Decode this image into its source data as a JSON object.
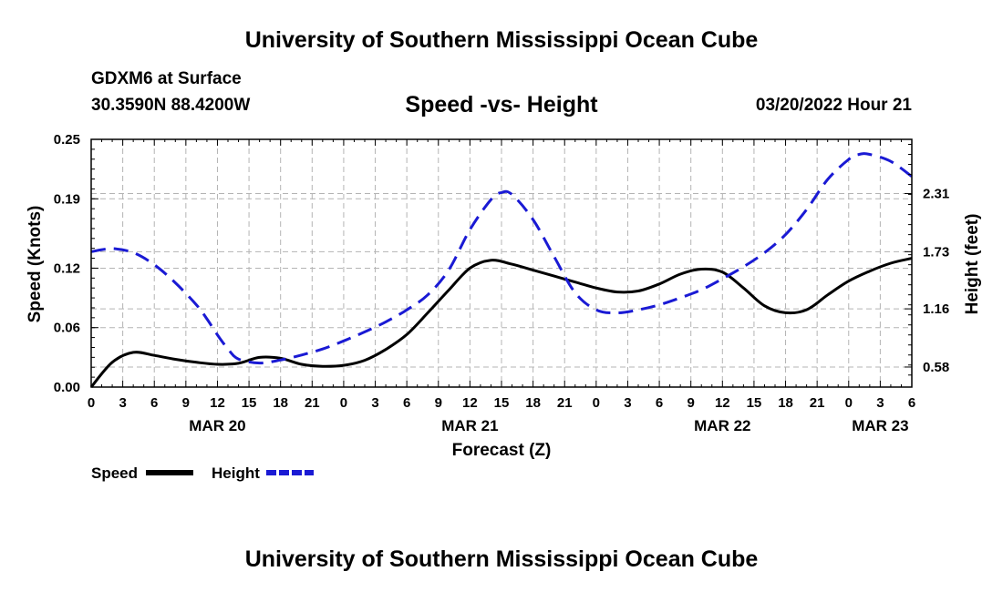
{
  "page": {
    "top_title": "University of Southern Mississippi Ocean Cube",
    "bottom_title": "University of Southern Mississippi Ocean Cube",
    "station": "GDXM6 at Surface",
    "coords": "30.3590N  88.4200W",
    "timestamp": "03/20/2022 Hour 21"
  },
  "chart_data": {
    "type": "line",
    "title": "Speed -vs- Height",
    "xlabel": "Forecast (Z)",
    "ylabel": "Speed (Knots)",
    "y2label": "Height (feet)",
    "x_unit": "forecast hours from MAR 20 00Z",
    "xlim": [
      0,
      78
    ],
    "ylim": [
      0,
      0.25
    ],
    "y2lim": [
      0.38,
      2.85
    ],
    "x_ticks": [
      0,
      3,
      6,
      9,
      12,
      15,
      18,
      21,
      24,
      27,
      30,
      33,
      36,
      39,
      42,
      45,
      48,
      51,
      54,
      57,
      60,
      63,
      66,
      69,
      72,
      75,
      78
    ],
    "x_tick_labels": [
      "0",
      "3",
      "6",
      "9",
      "12",
      "15",
      "18",
      "21",
      "0",
      "3",
      "6",
      "9",
      "12",
      "15",
      "18",
      "21",
      "0",
      "3",
      "6",
      "9",
      "12",
      "15",
      "18",
      "21",
      "0",
      "3",
      "6"
    ],
    "date_labels": [
      {
        "x": 12,
        "label": "MAR 20"
      },
      {
        "x": 36,
        "label": "MAR 21"
      },
      {
        "x": 60,
        "label": "MAR 22"
      },
      {
        "x": 75,
        "label": "MAR 23"
      }
    ],
    "y_ticks": [
      0,
      0.06,
      0.12,
      0.19,
      0.25
    ],
    "y_tick_labels": [
      "0.00",
      "0.06",
      "0.12",
      "0.19",
      "0.25"
    ],
    "y2_ticks": [
      0.58,
      1.16,
      1.73,
      2.31
    ],
    "y2_tick_labels": [
      "0.58",
      "1.16",
      "1.73",
      "2.31"
    ],
    "grid": true,
    "legend": {
      "position": "bottom-left"
    },
    "series": [
      {
        "name": "Speed",
        "axis": "left",
        "color": "#000000",
        "dash": "solid",
        "x": [
          0,
          2,
          4,
          6,
          8,
          10,
          12,
          14,
          16,
          18,
          20,
          22,
          24,
          26,
          28,
          30,
          32,
          34,
          36,
          38,
          40,
          42,
          44,
          46,
          48,
          50,
          52,
          54,
          56,
          58,
          60,
          62,
          64,
          66,
          68,
          70,
          72,
          74,
          76,
          78
        ],
        "values": [
          0.0,
          0.025,
          0.035,
          0.032,
          0.028,
          0.025,
          0.023,
          0.024,
          0.03,
          0.029,
          0.023,
          0.021,
          0.022,
          0.027,
          0.038,
          0.053,
          0.075,
          0.098,
          0.12,
          0.128,
          0.124,
          0.118,
          0.112,
          0.106,
          0.1,
          0.096,
          0.097,
          0.104,
          0.114,
          0.119,
          0.116,
          0.1,
          0.082,
          0.075,
          0.078,
          0.093,
          0.107,
          0.117,
          0.125,
          0.13
        ]
      },
      {
        "name": "Height",
        "axis": "right",
        "color": "#1a1ad4",
        "dash": "dashed",
        "x": [
          0,
          2,
          4,
          6,
          8,
          10,
          11,
          12,
          13,
          14,
          16,
          18,
          20,
          22,
          24,
          26,
          28,
          30,
          32,
          34,
          36,
          38,
          39,
          40,
          42,
          44,
          46,
          48,
          50,
          52,
          54,
          56,
          58,
          60,
          62,
          64,
          66,
          68,
          70,
          72,
          73,
          74,
          76,
          78
        ],
        "values": [
          1.73,
          1.76,
          1.72,
          1.6,
          1.42,
          1.2,
          1.06,
          0.9,
          0.76,
          0.66,
          0.62,
          0.65,
          0.7,
          0.76,
          0.84,
          0.93,
          1.03,
          1.15,
          1.3,
          1.55,
          1.95,
          2.25,
          2.32,
          2.3,
          2.05,
          1.68,
          1.32,
          1.15,
          1.12,
          1.15,
          1.2,
          1.27,
          1.35,
          1.46,
          1.58,
          1.72,
          1.9,
          2.15,
          2.45,
          2.65,
          2.7,
          2.7,
          2.63,
          2.48
        ]
      }
    ]
  }
}
